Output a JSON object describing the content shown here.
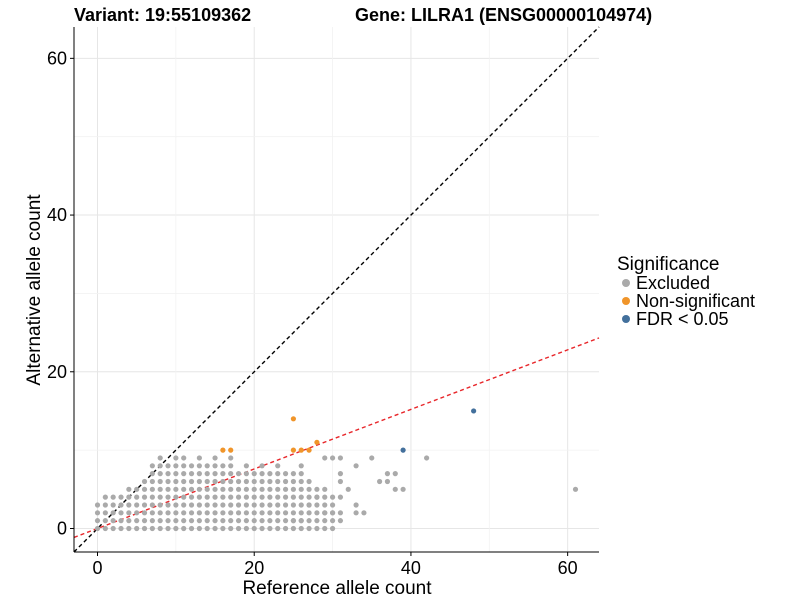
{
  "chart_data": {
    "type": "scatter",
    "title_left": "Variant: 19:55109362",
    "title_right": "Gene: LILRA1 (ENSG00000104974)",
    "xlabel": "Reference allele count",
    "ylabel": "Alternative allele count",
    "xlim": [
      -3,
      64
    ],
    "ylim": [
      -3,
      64
    ],
    "xticks": [
      0,
      20,
      40,
      60
    ],
    "yticks": [
      0,
      20,
      40,
      60
    ],
    "grid": true,
    "legend": {
      "title": "Significance",
      "placement": "right",
      "entries": [
        "Excluded",
        "Non-significant",
        "FDR < 0.05"
      ]
    },
    "colors": {
      "Excluded": "#AAAAAA",
      "Non-significant": "#F0952A",
      "FDR < 0.05": "#43709C",
      "diagonal": "#000000",
      "fit": "#E8262A"
    },
    "reference_lines": [
      {
        "name": "y = x",
        "slope": 1.0,
        "intercept": 0.0,
        "color": "#000000",
        "style": "dashed"
      },
      {
        "name": "fit",
        "slope": 0.38,
        "intercept": 0.0,
        "color": "#E8262A",
        "style": "dashed"
      }
    ],
    "series": [
      {
        "name": "Excluded",
        "grid_columns": [
          {
            "x": 0,
            "y_max": 3
          },
          {
            "x": 1,
            "y_max": 4
          },
          {
            "x": 2,
            "y_max": 4
          },
          {
            "x": 3,
            "y_max": 4
          },
          {
            "x": 4,
            "y_max": 5
          },
          {
            "x": 5,
            "y_max": 5
          },
          {
            "x": 6,
            "y_max": 6
          },
          {
            "x": 7,
            "y_max": 8
          },
          {
            "x": 8,
            "y_max": 9
          },
          {
            "x": 9,
            "y_max": 8
          },
          {
            "x": 10,
            "y_max": 9
          },
          {
            "x": 11,
            "y_max": 9
          },
          {
            "x": 12,
            "y_max": 8
          },
          {
            "x": 13,
            "y_max": 9
          },
          {
            "x": 14,
            "y_max": 8
          },
          {
            "x": 15,
            "y_max": 9
          },
          {
            "x": 16,
            "y_max": 8
          },
          {
            "x": 17,
            "y_max": 9
          },
          {
            "x": 18,
            "y_max": 7
          },
          {
            "x": 19,
            "y_max": 8
          },
          {
            "x": 20,
            "y_max": 7
          },
          {
            "x": 21,
            "y_max": 8
          },
          {
            "x": 22,
            "y_max": 7
          },
          {
            "x": 23,
            "y_max": 8
          },
          {
            "x": 24,
            "y_max": 7
          },
          {
            "x": 25,
            "y_max": 7
          },
          {
            "x": 26,
            "y_max": 8
          },
          {
            "x": 27,
            "y_max": 6
          },
          {
            "x": 28,
            "y_max": 5
          },
          {
            "x": 29,
            "y_max": 5
          },
          {
            "x": 30,
            "y_max": 4
          }
        ],
        "points": [
          [
            29,
            9
          ],
          [
            30,
            9
          ],
          [
            31,
            9
          ],
          [
            31,
            7
          ],
          [
            31,
            6
          ],
          [
            31,
            4
          ],
          [
            31,
            2
          ],
          [
            31,
            1
          ],
          [
            32,
            5
          ],
          [
            33,
            3
          ],
          [
            33,
            2
          ],
          [
            33,
            8
          ],
          [
            34,
            2
          ],
          [
            35,
            9
          ],
          [
            36,
            6
          ],
          [
            37,
            7
          ],
          [
            37,
            6
          ],
          [
            38,
            7
          ],
          [
            38,
            5
          ],
          [
            39,
            5
          ],
          [
            42,
            9
          ],
          [
            61,
            5
          ],
          [
            27,
            3
          ],
          [
            28,
            4
          ],
          [
            29,
            2
          ],
          [
            30,
            2
          ],
          [
            26,
            1
          ],
          [
            25,
            1
          ]
        ]
      },
      {
        "name": "Non-significant",
        "points": [
          [
            16,
            10
          ],
          [
            17,
            10
          ],
          [
            25,
            10
          ],
          [
            26,
            10
          ],
          [
            27,
            10
          ],
          [
            25,
            14
          ],
          [
            28,
            11
          ]
        ]
      },
      {
        "name": "FDR < 0.05",
        "points": [
          [
            39,
            10
          ],
          [
            48,
            15
          ]
        ]
      }
    ]
  }
}
